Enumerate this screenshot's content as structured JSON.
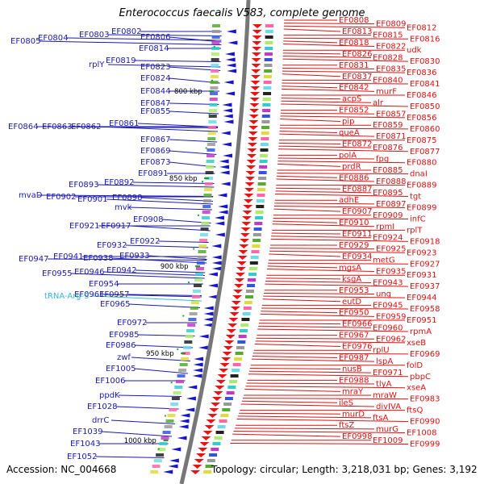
{
  "title": "Enterococcus faecalis V583, complete genome",
  "footer": {
    "accession": "Accession: NC_004668",
    "topology": "Topology: circular; Length: 3,218,031 bp; Genes: 3,192"
  },
  "colors": {
    "left_labels": "#1a1ab0",
    "rna_label": "#33b8d8",
    "right_labels": "#dd1111",
    "backbone": "#777777",
    "tick": "#1f9d1f"
  },
  "scale_marks": [
    "800 kbp",
    "850 kbp",
    "900 kbp",
    "950 kbp",
    "1000 kbp"
  ],
  "left_labels": [
    "EF0802",
    "EF0803",
    "EF0804",
    "EF0805",
    "EF0806",
    "EF0814",
    "EF0819",
    "rplY",
    "EF0823",
    "EF0824",
    "EF0844",
    "EF0847",
    "EF0855",
    "EF0861",
    "EF0862",
    "EF0863",
    "EF0864",
    "EF0867",
    "EF0869",
    "EF0873",
    "EF0891",
    "EF0892",
    "EF0893",
    "EF0898",
    "EF0901",
    "EF0902",
    "mvaD",
    "mvk",
    "EF0908",
    "EF0917",
    "EF0921",
    "EF0922",
    "EF0932",
    "EF0933",
    "EF0938",
    "EF0941",
    "EF0947",
    "EF0942",
    "EF0946",
    "EF0955",
    "EF0954",
    "EF0957",
    "EF0961",
    "EF0965",
    "tRNA-Arg-3",
    "EF0972",
    "EF0985",
    "EF0986",
    "zwf",
    "EF1005",
    "EF1006",
    "ppdK",
    "EF1028",
    "drrC",
    "EF1039",
    "EF1043",
    "EF1052"
  ],
  "right_labels": [
    "EF0808",
    "EF0809",
    "EF0812",
    "EF0813",
    "EF0815",
    "EF0816",
    "EF0818",
    "EF0822",
    "udk",
    "EF0826",
    "EF0828",
    "EF0830",
    "EF0831",
    "EF0835",
    "EF0836",
    "EF0837",
    "EF0840",
    "EF0841",
    "EF0842",
    "murF",
    "EF0846",
    "acpS",
    "alr",
    "EF0850",
    "EF0852",
    "EF0857",
    "EF0856",
    "pip",
    "EF0859",
    "EF0860",
    "queA",
    "EF0871",
    "EF0875",
    "EF0872",
    "EF0876",
    "EF0877",
    "polA",
    "fpg",
    "EF0880",
    "prdR",
    "EF0885",
    "dnaI",
    "EF0886",
    "EF0888",
    "EF0889",
    "EF0887",
    "EF0895",
    "tgt",
    "adhE",
    "EF0897",
    "EF0899",
    "EF0907",
    "EF0909",
    "infC",
    "EF0910",
    "rpmI",
    "rplT",
    "EF0911",
    "EF0924",
    "EF0918",
    "EF0929",
    "EF0925",
    "EF0923",
    "EF0934",
    "metG",
    "EF0927",
    "mgsA",
    "EF0935",
    "EF0931",
    "ksgA",
    "EF0943",
    "EF0937",
    "EF0953",
    "ung",
    "EF0944",
    "eutD",
    "EF0945",
    "EF0958",
    "EF0950",
    "EF0959",
    "EF0951",
    "EF0966",
    "EF0960",
    "rpmA",
    "EF0967",
    "EF0962",
    "xseB",
    "EF0976",
    "rplU",
    "EF0969",
    "EF0987",
    "lspA",
    "folD",
    "nusB",
    "EF0971",
    "pbpC",
    "EF0988",
    "tlyA",
    "xseA",
    "mraY",
    "mraW",
    "EF0983",
    "ileS",
    "divIVA",
    "ftsQ",
    "murD",
    "ftsA",
    "EF0990",
    "ftsZ",
    "murG",
    "EF1008",
    "EF0998",
    "EF1009",
    "EF0999"
  ]
}
